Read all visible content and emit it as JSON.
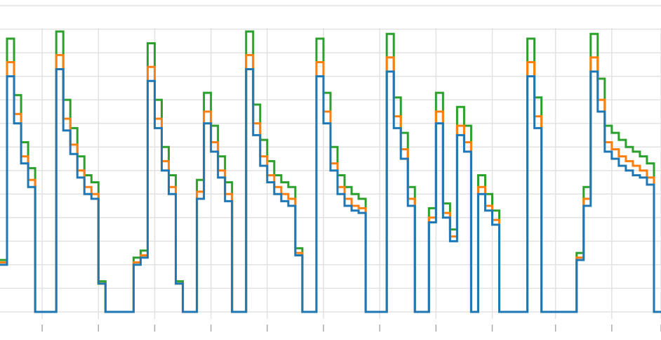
{
  "chart_data": {
    "type": "line",
    "title": "",
    "xlabel": "",
    "ylabel": "",
    "xlim": [
      0,
      94
    ],
    "ylim": [
      -0.3,
      13
    ],
    "x_grid": [
      6,
      14,
      22,
      30,
      38,
      46,
      54,
      62,
      70,
      79,
      87,
      94
    ],
    "y_grid": [
      0,
      1,
      2,
      3,
      4,
      5,
      6,
      7,
      8,
      9,
      10,
      11,
      12,
      13
    ],
    "x_ticks": [
      6,
      14,
      22,
      30,
      38,
      46,
      54,
      62,
      70,
      79,
      87,
      94
    ],
    "grid": true,
    "legend": "none",
    "x": [
      0,
      1,
      2,
      3,
      4,
      5,
      6,
      7,
      8,
      9,
      10,
      11,
      12,
      13,
      14,
      15,
      16,
      17,
      18,
      19,
      20,
      21,
      22,
      23,
      24,
      25,
      26,
      27,
      28,
      29,
      30,
      31,
      32,
      33,
      34,
      35,
      36,
      37,
      38,
      39,
      40,
      41,
      42,
      43,
      44,
      45,
      46,
      47,
      48,
      49,
      50,
      51,
      52,
      53,
      54,
      55,
      56,
      57,
      58,
      59,
      60,
      61,
      62,
      63,
      64,
      65,
      66,
      67,
      68,
      69,
      70,
      71,
      72,
      73,
      74,
      75,
      76,
      77,
      78,
      79,
      80,
      81,
      82,
      83,
      84,
      85,
      86,
      87,
      88,
      89,
      90,
      91,
      92,
      93,
      94
    ],
    "series": [
      {
        "color": "#1f77b4",
        "values": [
          2.0,
          10.0,
          8.0,
          6.3,
          5.3,
          0.0,
          0.0,
          0.0,
          10.3,
          7.7,
          6.7,
          5.7,
          5.0,
          4.8,
          1.2,
          0.0,
          0.0,
          0.0,
          0.0,
          2.0,
          2.3,
          9.8,
          7.8,
          6.0,
          5.0,
          1.2,
          0.0,
          0.0,
          4.8,
          8.0,
          6.8,
          5.7,
          4.7,
          0.0,
          0.0,
          10.3,
          7.5,
          6.2,
          5.5,
          5.0,
          4.7,
          4.5,
          2.4,
          0.0,
          0.0,
          10.0,
          8.0,
          6.0,
          5.0,
          4.5,
          4.3,
          4.2,
          0.0,
          0.0,
          0.0,
          10.2,
          7.8,
          6.5,
          4.5,
          0.0,
          0.0,
          3.8,
          8.0,
          4.0,
          3.0,
          7.5,
          6.8,
          0.0,
          5.0,
          4.3,
          3.7,
          0.0,
          0.0,
          0.0,
          0.0,
          10.0,
          7.8,
          0.0,
          0.0,
          0.0,
          0.0,
          0.0,
          2.2,
          4.5,
          10.2,
          8.5,
          6.8,
          6.5,
          6.2,
          6.0,
          5.8,
          5.7,
          5.4,
          0.0,
          0.0
        ]
      },
      {
        "color": "#ff7f0e",
        "values": [
          2.1,
          10.6,
          8.4,
          6.6,
          5.6,
          0.0,
          0.0,
          0.0,
          10.9,
          8.2,
          7.1,
          6.0,
          5.3,
          5.0,
          1.2,
          0.0,
          0.0,
          0.0,
          0.0,
          2.1,
          2.4,
          10.4,
          8.2,
          6.4,
          5.3,
          1.2,
          0.0,
          0.0,
          5.1,
          8.5,
          7.2,
          6.0,
          5.0,
          0.0,
          0.0,
          10.9,
          8.0,
          6.6,
          5.8,
          5.3,
          5.0,
          4.8,
          2.5,
          0.0,
          0.0,
          10.6,
          8.5,
          6.3,
          5.3,
          4.8,
          4.5,
          4.4,
          0.0,
          0.0,
          0.0,
          10.8,
          8.3,
          6.9,
          4.8,
          0.0,
          0.0,
          4.0,
          8.5,
          4.2,
          3.2,
          7.9,
          7.2,
          0.0,
          5.3,
          4.5,
          3.9,
          0.0,
          0.0,
          0.0,
          0.0,
          10.6,
          8.3,
          0.0,
          0.0,
          0.0,
          0.0,
          0.0,
          2.3,
          4.8,
          10.8,
          9.0,
          7.2,
          6.9,
          6.6,
          6.4,
          6.2,
          6.0,
          5.7,
          0.0,
          0.0
        ]
      },
      {
        "color": "#2ca02c",
        "values": [
          2.2,
          11.6,
          9.2,
          7.2,
          6.1,
          0.0,
          0.0,
          0.0,
          11.9,
          9.0,
          7.8,
          6.6,
          5.8,
          5.5,
          1.3,
          0.0,
          0.0,
          0.0,
          0.0,
          2.3,
          2.6,
          11.4,
          9.0,
          7.0,
          5.8,
          1.3,
          0.0,
          0.0,
          5.6,
          9.3,
          7.9,
          6.6,
          5.5,
          0.0,
          0.0,
          11.9,
          8.8,
          7.3,
          6.4,
          5.8,
          5.5,
          5.3,
          2.7,
          0.0,
          0.0,
          11.6,
          9.3,
          7.0,
          5.8,
          5.3,
          5.0,
          4.8,
          0.0,
          0.0,
          0.0,
          11.8,
          9.1,
          7.6,
          5.3,
          0.0,
          0.0,
          4.4,
          9.3,
          4.6,
          3.5,
          8.7,
          7.9,
          0.0,
          5.8,
          5.0,
          4.3,
          0.0,
          0.0,
          0.0,
          0.0,
          11.6,
          9.1,
          0.0,
          0.0,
          0.0,
          0.0,
          0.0,
          2.5,
          5.3,
          11.8,
          9.9,
          7.9,
          7.6,
          7.3,
          7.0,
          6.8,
          6.6,
          6.3,
          0.0,
          0.0
        ]
      }
    ]
  }
}
